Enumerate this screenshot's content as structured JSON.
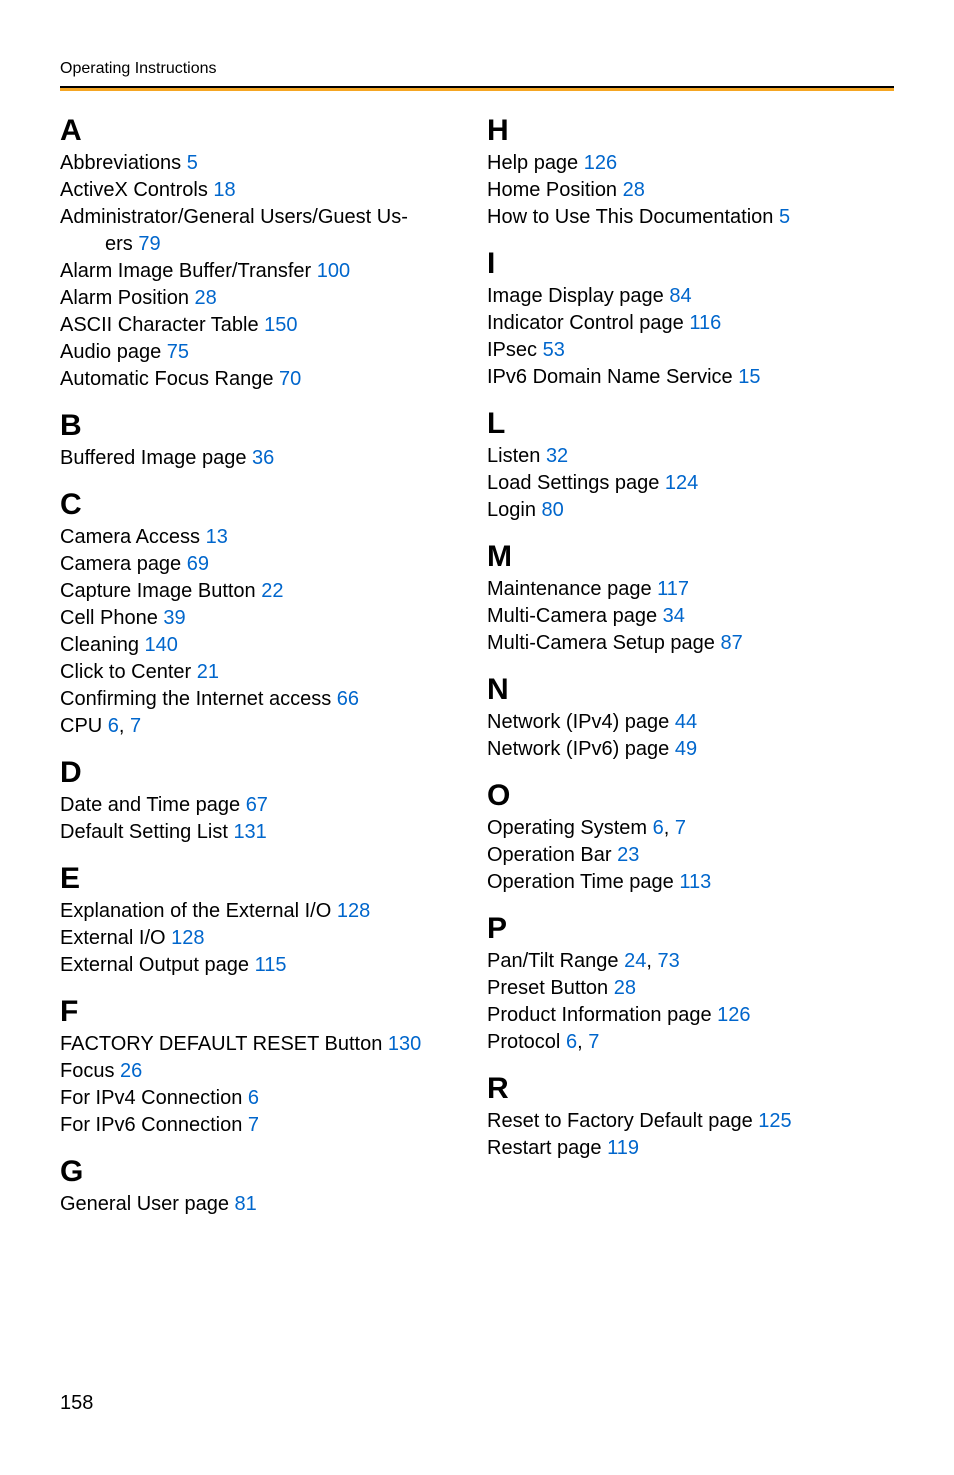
{
  "header": "Operating Instructions",
  "page_number": "158",
  "styling": {
    "accent_color": "#f5a623",
    "link_color": "#0066cc",
    "text_color": "#000000",
    "background_color": "#ffffff",
    "header_fontsize": 16,
    "section_letter_fontsize": 30,
    "entry_fontsize": 20,
    "page_number_fontsize": 20
  },
  "columns": {
    "left": [
      {
        "letter": "A",
        "entries": [
          {
            "text": "Abbreviations ",
            "page": "5"
          },
          {
            "text": "ActiveX Controls ",
            "page": "18"
          },
          {
            "text": "Administrator/General Users/Guest Users ",
            "page": "79",
            "wrap": true
          },
          {
            "text": "Alarm Image Buffer/Transfer ",
            "page": "100"
          },
          {
            "text": "Alarm Position ",
            "page": "28"
          },
          {
            "text": "ASCII Character Table ",
            "page": "150"
          },
          {
            "text": "Audio page ",
            "page": "75"
          },
          {
            "text": "Automatic Focus Range ",
            "page": "70"
          }
        ]
      },
      {
        "letter": "B",
        "entries": [
          {
            "text": "Buffered Image page ",
            "page": "36"
          }
        ]
      },
      {
        "letter": "C",
        "entries": [
          {
            "text": "Camera Access ",
            "page": "13"
          },
          {
            "text": "Camera page ",
            "page": "69"
          },
          {
            "text": "Capture Image Button ",
            "page": "22"
          },
          {
            "text": "Cell Phone ",
            "page": "39"
          },
          {
            "text": "Cleaning ",
            "page": "140"
          },
          {
            "text": "Click to Center ",
            "page": "21"
          },
          {
            "text": "Confirming the Internet access ",
            "page": "66"
          },
          {
            "text": "CPU ",
            "page": "6, 7"
          }
        ]
      },
      {
        "letter": "D",
        "entries": [
          {
            "text": "Date and Time page ",
            "page": "67"
          },
          {
            "text": "Default Setting List ",
            "page": "131"
          }
        ]
      },
      {
        "letter": "E",
        "entries": [
          {
            "text": "Explanation of the External I/O ",
            "page": "128"
          },
          {
            "text": "External I/O ",
            "page": "128"
          },
          {
            "text": "External Output page ",
            "page": "115"
          }
        ]
      },
      {
        "letter": "F",
        "entries": [
          {
            "text": "FACTORY DEFAULT RESET Button ",
            "page": "130"
          },
          {
            "text": "Focus ",
            "page": "26"
          },
          {
            "text": "For IPv4 Connection ",
            "page": "6"
          },
          {
            "text": "For IPv6 Connection ",
            "page": "7"
          }
        ]
      },
      {
        "letter": "G",
        "entries": [
          {
            "text": "General User page ",
            "page": "81"
          }
        ]
      }
    ],
    "right": [
      {
        "letter": "H",
        "entries": [
          {
            "text": "Help page ",
            "page": "126"
          },
          {
            "text": "Home Position ",
            "page": "28"
          },
          {
            "text": "How to Use This Documentation ",
            "page": "5"
          }
        ]
      },
      {
        "letter": "I",
        "entries": [
          {
            "text": "Image Display page ",
            "page": "84"
          },
          {
            "text": "Indicator Control page ",
            "page": "116"
          },
          {
            "text": "IPsec ",
            "page": "53"
          },
          {
            "text": "IPv6 Domain Name Service ",
            "page": "15"
          }
        ]
      },
      {
        "letter": "L",
        "entries": [
          {
            "text": "Listen ",
            "page": "32"
          },
          {
            "text": "Load Settings page ",
            "page": "124"
          },
          {
            "text": "Login ",
            "page": "80"
          }
        ]
      },
      {
        "letter": "M",
        "entries": [
          {
            "text": "Maintenance page ",
            "page": "117"
          },
          {
            "text": "Multi-Camera page ",
            "page": "34"
          },
          {
            "text": "Multi-Camera Setup page ",
            "page": "87"
          }
        ]
      },
      {
        "letter": "N",
        "entries": [
          {
            "text": "Network (IPv4) page ",
            "page": "44"
          },
          {
            "text": "Network (IPv6) page ",
            "page": "49"
          }
        ]
      },
      {
        "letter": "O",
        "entries": [
          {
            "text": "Operating System ",
            "page": "6, 7"
          },
          {
            "text": "Operation Bar ",
            "page": "23"
          },
          {
            "text": "Operation Time page ",
            "page": "113"
          }
        ]
      },
      {
        "letter": "P",
        "entries": [
          {
            "text": "Pan/Tilt Range ",
            "page": "24, 73"
          },
          {
            "text": "Preset Button ",
            "page": "28"
          },
          {
            "text": "Product Information page ",
            "page": "126"
          },
          {
            "text": "Protocol ",
            "page": "6, 7"
          }
        ]
      },
      {
        "letter": "R",
        "entries": [
          {
            "text": "Reset to Factory Default page ",
            "page": "125"
          },
          {
            "text": "Restart page ",
            "page": "119"
          }
        ]
      }
    ]
  }
}
